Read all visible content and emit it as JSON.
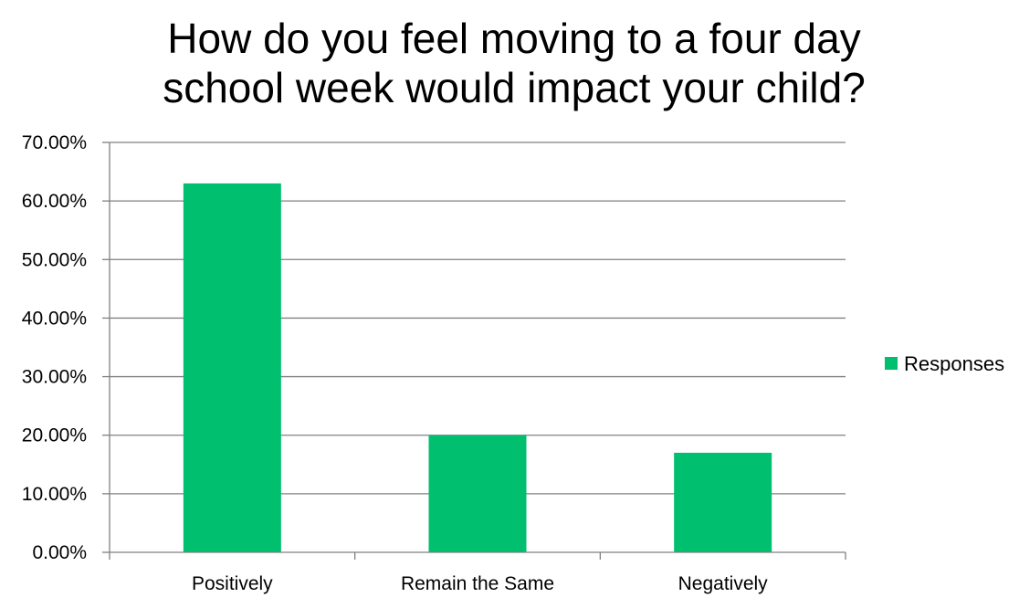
{
  "chart_data": {
    "type": "bar",
    "title_lines": [
      "How do you feel moving to a four day",
      "school week would impact your child?"
    ],
    "categories": [
      "Positively",
      "Remain the Same",
      "Negatively"
    ],
    "series": [
      {
        "name": "Responses",
        "values": [
          0.63,
          0.2,
          0.17
        ],
        "color": "#00BF6F"
      }
    ],
    "ylim": [
      0,
      0.7
    ],
    "yticks": [
      0,
      0.1,
      0.2,
      0.3,
      0.4,
      0.5,
      0.6,
      0.7
    ],
    "ytick_labels": [
      "0.00%",
      "10.00%",
      "20.00%",
      "30.00%",
      "40.00%",
      "50.00%",
      "60.00%",
      "70.00%"
    ],
    "grid": true,
    "legend_position": "right",
    "xlabel": "",
    "ylabel": ""
  }
}
